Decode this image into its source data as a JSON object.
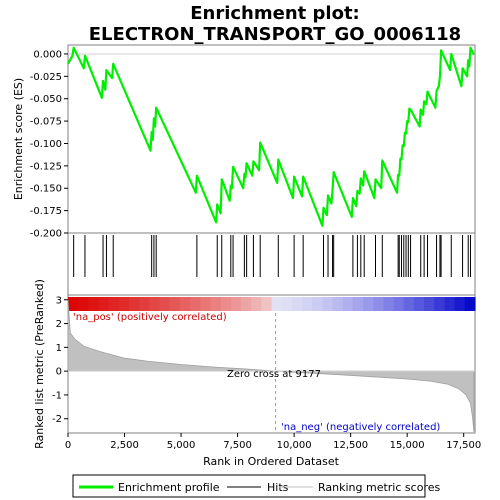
{
  "chart_data": {
    "type": "line",
    "title_lines": [
      "Enrichment plot:",
      "ELECTRON_TRANSPORT_GO_0006118"
    ],
    "xlabel": "Rank in Ordered Dataset",
    "ylabel_top": "Enrichment score (ES)",
    "ylabel_bottom": "Ranked list metric (PreRanked)",
    "xlim": [
      0,
      18000
    ],
    "x_ticks": [
      0,
      2500,
      5000,
      7500,
      10000,
      12500,
      15000,
      17500
    ],
    "x_tick_labels": [
      "0",
      "2,500",
      "5,000",
      "7,500",
      "10,000",
      "12,500",
      "15,000",
      "17,500"
    ],
    "es_ylim": [
      -0.2,
      0.01
    ],
    "es_ticks": [
      0.0,
      -0.025,
      -0.05,
      -0.075,
      -0.1,
      -0.125,
      -0.15,
      -0.175,
      -0.2
    ],
    "es_tick_labels": [
      "0.000",
      "-0.025",
      "-0.050",
      "-0.075",
      "-0.100",
      "-0.125",
      "-0.150",
      "-0.175",
      "-0.200"
    ],
    "metric_ylim": [
      -2.6,
      3.2
    ],
    "metric_ticks": [
      3,
      2,
      1,
      0,
      -1,
      -2
    ],
    "metric_tick_labels": [
      "3",
      "2",
      "1",
      "0",
      "-1",
      "-2"
    ],
    "hits": [
      250,
      750,
      1550,
      1700,
      2000,
      3700,
      3800,
      3900,
      5700,
      6600,
      6800,
      7200,
      7300,
      7800,
      7900,
      8200,
      8500,
      9300,
      10000,
      10400,
      11300,
      11500,
      11700,
      11750,
      12600,
      12800,
      12950,
      13100,
      13600,
      13900,
      14600,
      14650,
      14750,
      14850,
      14950,
      15050,
      15150,
      15600,
      15750,
      15900,
      16300,
      16450,
      16500,
      16950,
      17450,
      17700,
      17800
    ],
    "series": [
      {
        "name": "Enrichment profile",
        "color": "#00ee00",
        "x": [
          0,
          200,
          250,
          700,
          750,
          1500,
          1550,
          1650,
          1700,
          1950,
          2000,
          3650,
          3700,
          3750,
          3800,
          3850,
          3900,
          5650,
          5700,
          6550,
          6600,
          6750,
          6800,
          7150,
          7200,
          7250,
          7300,
          7750,
          7800,
          7850,
          7900,
          8150,
          8200,
          8450,
          8500,
          9250,
          9300,
          9950,
          10000,
          10350,
          10400,
          11250,
          11300,
          11450,
          11500,
          11650,
          11700,
          11750,
          12550,
          12600,
          12750,
          12800,
          12900,
          12950,
          13050,
          13100,
          13550,
          13600,
          13850,
          13900,
          14550,
          14600,
          14650,
          14700,
          14750,
          14800,
          14850,
          14900,
          14950,
          15000,
          15050,
          15100,
          15150,
          15550,
          15600,
          15700,
          15750,
          15850,
          15900,
          16250,
          16300,
          16400,
          16450,
          16500,
          16900,
          16950,
          17400,
          17450,
          17650,
          17700,
          17750,
          17800,
          17950
        ],
        "y": [
          -0.011,
          -0.002,
          0.007,
          -0.016,
          -0.002,
          -0.049,
          -0.03,
          -0.04,
          -0.018,
          -0.027,
          -0.011,
          -0.108,
          -0.087,
          -0.096,
          -0.072,
          -0.081,
          -0.06,
          -0.155,
          -0.136,
          -0.188,
          -0.168,
          -0.178,
          -0.14,
          -0.164,
          -0.147,
          -0.15,
          -0.126,
          -0.15,
          -0.134,
          -0.138,
          -0.122,
          -0.136,
          -0.12,
          -0.13,
          -0.099,
          -0.144,
          -0.118,
          -0.161,
          -0.137,
          -0.159,
          -0.137,
          -0.192,
          -0.172,
          -0.18,
          -0.158,
          -0.167,
          -0.151,
          -0.132,
          -0.182,
          -0.161,
          -0.17,
          -0.153,
          -0.156,
          -0.139,
          -0.147,
          -0.131,
          -0.161,
          -0.14,
          -0.15,
          -0.119,
          -0.155,
          -0.135,
          -0.136,
          -0.117,
          -0.118,
          -0.102,
          -0.103,
          -0.088,
          -0.089,
          -0.075,
          -0.076,
          -0.061,
          -0.062,
          -0.081,
          -0.062,
          -0.068,
          -0.053,
          -0.056,
          -0.042,
          -0.06,
          -0.041,
          -0.036,
          -0.025,
          0.004,
          -0.018,
          0.0,
          -0.036,
          -0.016,
          -0.025,
          -0.007,
          -0.014,
          0.007,
          -0.001
        ]
      }
    ],
    "metric_profile": {
      "x": [
        0,
        100,
        300,
        700,
        1500,
        2500,
        3500,
        5000,
        6500,
        8000,
        9177,
        10500,
        12000,
        13500,
        15000,
        16000,
        16800,
        17300,
        17600,
        17800,
        17900,
        17950
      ],
      "y": [
        3.0,
        1.6,
        1.35,
        1.05,
        0.8,
        0.55,
        0.42,
        0.28,
        0.17,
        0.08,
        0.0,
        -0.07,
        -0.15,
        -0.24,
        -0.33,
        -0.42,
        -0.55,
        -0.75,
        -1.0,
        -1.35,
        -2.0,
        -2.55
      ]
    },
    "zero_cross_label": "Zero cross at 9177",
    "zero_cross_x": 9177,
    "pos_label": "'na_pos' (positively correlated)",
    "neg_label": "'na_neg' (negatively correlated)",
    "pos_color": "#cc0000",
    "neg_color": "#0000cc",
    "legend": [
      "Enrichment profile",
      "Hits",
      "Ranking metric scores"
    ],
    "legend_colors": [
      "#00ee00",
      "#000000",
      "#c0c0c0"
    ]
  }
}
